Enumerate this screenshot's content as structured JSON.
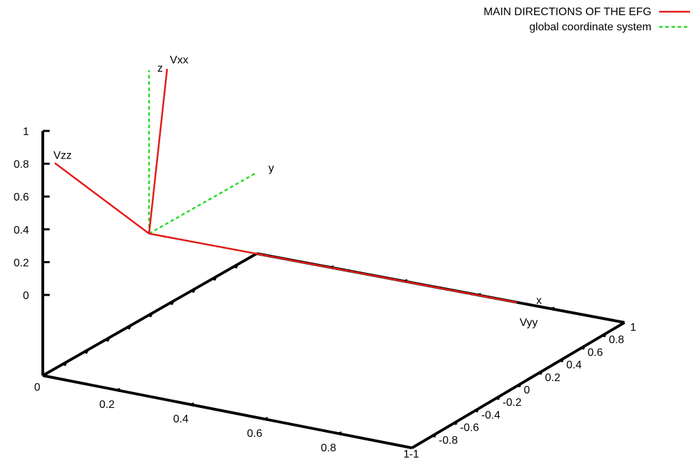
{
  "chart_data": {
    "type": "line",
    "title": "",
    "legend": {
      "placement": "top-right",
      "entries": [
        {
          "label": "MAIN DIRECTIONS OF THE EFG",
          "color": "#e41a1c",
          "style": "solid"
        },
        {
          "label": "global coordinate system",
          "color": "#22dd22",
          "style": "dashed"
        }
      ]
    },
    "axes": {
      "x": {
        "range": [
          0,
          1
        ],
        "ticks": [
          "0",
          "0.2",
          "0.4",
          "0.6",
          "0.8",
          "1"
        ]
      },
      "y": {
        "range": [
          -1,
          1
        ],
        "ticks": [
          "-1",
          "-0.8",
          "-0.6",
          "-0.4",
          "-0.2",
          "0",
          "0.2",
          "0.4",
          "0.6",
          "0.8",
          "1"
        ]
      },
      "z": {
        "range": [
          0,
          1
        ],
        "ticks": [
          "0",
          "0.2",
          "0.4",
          "0.6",
          "0.8",
          "1"
        ]
      }
    },
    "series": [
      {
        "name": "MAIN DIRECTIONS OF THE EFG",
        "vectors": [
          {
            "label": "Vxx",
            "from": [
              0,
              0,
              0
            ],
            "to": [
              0.02,
              0.1,
              0.98
            ]
          },
          {
            "label": "Vyy",
            "from": [
              0,
              0,
              0
            ],
            "to": [
              1,
              0,
              0
            ]
          },
          {
            "label": "Vzz",
            "from": [
              0,
              0,
              0
            ],
            "to": [
              -0.3,
              0.15,
              0.25
            ]
          }
        ]
      },
      {
        "name": "global coordinate system",
        "vectors": [
          {
            "label": "x",
            "from": [
              0,
              0,
              0
            ],
            "to": [
              1,
              0,
              0
            ]
          },
          {
            "label": "y",
            "from": [
              0,
              0,
              0
            ],
            "to": [
              0,
              1,
              0
            ]
          },
          {
            "label": "z",
            "from": [
              0,
              0,
              0
            ],
            "to": [
              0,
              0,
              1
            ]
          }
        ]
      }
    ]
  }
}
